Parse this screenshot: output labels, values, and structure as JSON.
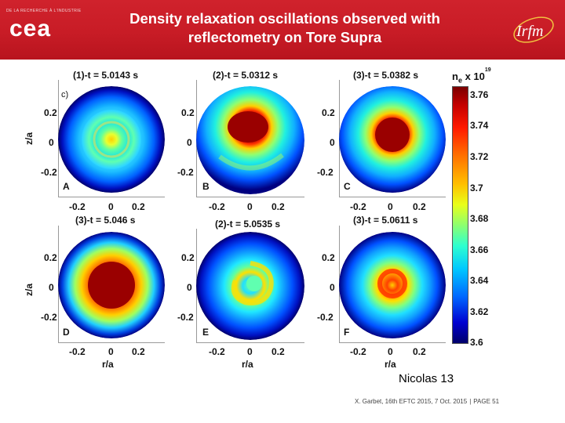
{
  "header": {
    "organization": "DE LA RECHERCHE À L'INDUSTRIE",
    "logo_text": "cea",
    "title_line1": "Density relaxation oscillations observed with",
    "title_line2": "reflectometry on Tore Supra",
    "lab_logo": "Irfm"
  },
  "panels": [
    {
      "title": "(1)-t = 5.0143 s",
      "label": "A",
      "extra": "c)"
    },
    {
      "title": "(2)-t = 5.0312 s",
      "label": "B"
    },
    {
      "title": "(3)-t = 5.0382 s",
      "label": "C"
    },
    {
      "title": "(3)-t = 5.046 s",
      "label": "D"
    },
    {
      "title": "(2)-t = 5.0535 s",
      "label": "E"
    },
    {
      "title": "(3)-t = 5.0611 s",
      "label": "F"
    }
  ],
  "axes": {
    "y_label": "z/a",
    "x_label": "r/a",
    "y_ticks": [
      "0.2",
      "0",
      "-0.2"
    ],
    "x_ticks": [
      "-0.2",
      "0",
      "0.2"
    ]
  },
  "colorbar": {
    "symbol": "n",
    "subscript": "e",
    "multiplier": "x 10",
    "exponent": "19",
    "ticks": [
      "3.76",
      "3.74",
      "3.72",
      "3.7",
      "3.68",
      "3.66",
      "3.64",
      "3.62",
      "3.6"
    ]
  },
  "caption": "Nicolas 13",
  "footer": {
    "citation": "X. Garbet, 16th EFTC 2015, 7 Oct. 2015",
    "page": "PAGE 51"
  },
  "colors": {
    "header_red": "#c81c26",
    "text": "#111111"
  }
}
